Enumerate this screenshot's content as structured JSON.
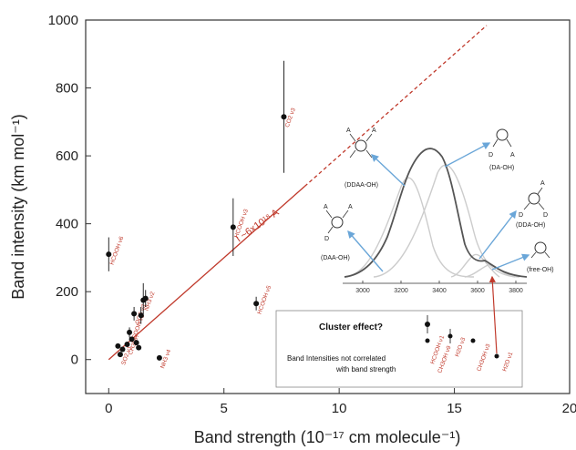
{
  "chart_data": {
    "type": "scatter",
    "xlabel": "Band strength (10⁻¹⁷ cm molecule⁻¹)",
    "ylabel": "Band intensity (km mol⁻¹)",
    "xlim": [
      -1,
      20
    ],
    "ylim": [
      -100,
      1000
    ],
    "xticks": [
      0,
      5,
      10,
      15,
      20
    ],
    "yticks": [
      0,
      200,
      400,
      600,
      800,
      1000
    ],
    "fit_line": {
      "label": "I ~6x10¹⁸ A",
      "slope": 60,
      "solid_to_x": 8.5,
      "dashed_to_x": 16.4
    },
    "points": [
      {
        "x": 0.0,
        "y": 310,
        "err": 50,
        "label": "HCOOH ν6"
      },
      {
        "x": 0.4,
        "y": 40,
        "err": 0,
        "label": ""
      },
      {
        "x": 0.5,
        "y": 15,
        "err": 0,
        "label": "SO2 ν1"
      },
      {
        "x": 0.6,
        "y": 30,
        "err": 0,
        "label": ""
      },
      {
        "x": 0.8,
        "y": 45,
        "err": 0,
        "label": "CH3OH"
      },
      {
        "x": 0.9,
        "y": 80,
        "err": 15,
        "label": "HCOOH ν2"
      },
      {
        "x": 1.0,
        "y": 60,
        "err": 0,
        "label": ""
      },
      {
        "x": 1.1,
        "y": 135,
        "err": 20,
        "label": "OCS ν3"
      },
      {
        "x": 1.2,
        "y": 50,
        "err": 0,
        "label": ""
      },
      {
        "x": 1.3,
        "y": 35,
        "err": 0,
        "label": ""
      },
      {
        "x": 1.4,
        "y": 130,
        "err": 25,
        "label": ""
      },
      {
        "x": 1.5,
        "y": 175,
        "err": 50,
        "label": "NH3 ν2"
      },
      {
        "x": 1.6,
        "y": 180,
        "err": 25,
        "label": ""
      },
      {
        "x": 2.2,
        "y": 5,
        "err": 0,
        "label": "NH3 ν4"
      },
      {
        "x": 5.4,
        "y": 390,
        "err": 85,
        "label": "HCOOH ν3"
      },
      {
        "x": 6.4,
        "y": 165,
        "err": 20,
        "label": "HCOOH ν5"
      },
      {
        "x": 7.6,
        "y": 715,
        "err": 165,
        "label": "CO2 ν3"
      }
    ],
    "inset": {
      "xticks": [
        3000,
        3200,
        3400,
        3600,
        3800
      ],
      "mol_labels": [
        "(DDAA-OH)",
        "(DAA-OH)",
        "(DA-OH)",
        "(DDA-OH)",
        "(free-OH)"
      ],
      "d_label": "D",
      "a_label": "A"
    },
    "box": {
      "title": "Cluster effect?",
      "note_line1": "Band Intensities not correlated",
      "note_line2": "with band strength",
      "point_labels": [
        "HCOOH ν1",
        "CH3OH ν9",
        "H2O ν3",
        "CH3OH ν3",
        "H2O ν1"
      ]
    }
  },
  "colors": {
    "fit": "#c0392b",
    "points": "#111111",
    "curve": "#555555",
    "gauss": "#cccccc",
    "arrow": "#6aa6d8"
  }
}
